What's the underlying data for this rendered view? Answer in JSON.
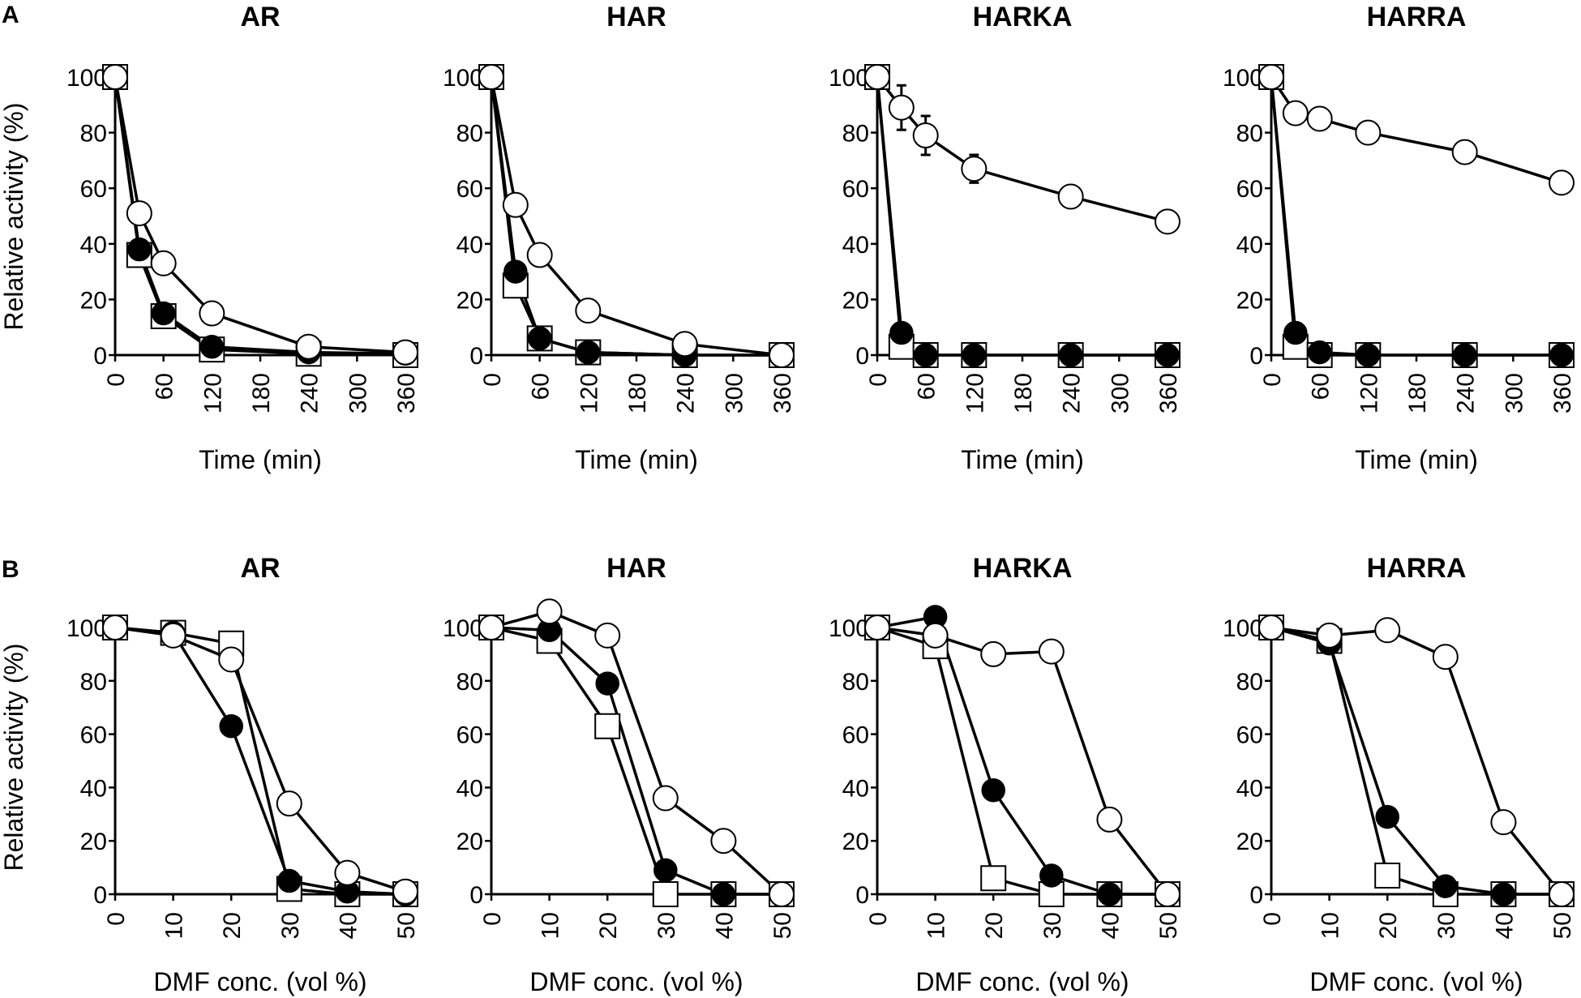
{
  "figure": {
    "row_labels": [
      "A",
      "B"
    ],
    "ylabel": "Relative activity (%)"
  },
  "chart_data": [
    {
      "type": "line",
      "row": "A",
      "title": "AR",
      "xlabel": "Time (min)",
      "ylabel": "Relative activity (%)",
      "xlim": [
        0,
        360
      ],
      "ylim": [
        0,
        100
      ],
      "xticks": [
        0,
        60,
        120,
        180,
        240,
        300,
        360
      ],
      "yticks": [
        0,
        20,
        40,
        60,
        80,
        100
      ],
      "series": [
        {
          "name": "open-circle",
          "marker": "circle-open",
          "x": [
            0,
            30,
            60,
            120,
            240,
            360
          ],
          "y": [
            100,
            51,
            33,
            15,
            3,
            1
          ]
        },
        {
          "name": "filled-circle",
          "marker": "circle-filled",
          "x": [
            0,
            30,
            60,
            120,
            240,
            360
          ],
          "y": [
            100,
            38,
            15,
            3,
            1,
            0.5
          ]
        },
        {
          "name": "open-square",
          "marker": "square-open",
          "x": [
            0,
            30,
            60,
            120,
            240,
            360
          ],
          "y": [
            100,
            36,
            14,
            2,
            0.5,
            0
          ]
        }
      ]
    },
    {
      "type": "line",
      "row": "A",
      "title": "HAR",
      "xlabel": "Time (min)",
      "ylabel": "",
      "xlim": [
        0,
        360
      ],
      "ylim": [
        0,
        100
      ],
      "xticks": [
        0,
        60,
        120,
        180,
        240,
        300,
        360
      ],
      "yticks": [
        0,
        20,
        40,
        60,
        80,
        100
      ],
      "series": [
        {
          "name": "open-circle",
          "marker": "circle-open",
          "x": [
            0,
            30,
            60,
            120,
            240,
            360
          ],
          "y": [
            100,
            54,
            36,
            16,
            4,
            0
          ]
        },
        {
          "name": "filled-circle",
          "marker": "circle-filled",
          "x": [
            0,
            30,
            60,
            120,
            240,
            360
          ],
          "y": [
            100,
            30,
            6,
            1,
            0,
            0
          ]
        },
        {
          "name": "open-square",
          "marker": "square-open",
          "x": [
            0,
            30,
            60,
            120,
            240,
            360
          ],
          "y": [
            100,
            25,
            6,
            1,
            0,
            0
          ]
        }
      ]
    },
    {
      "type": "line",
      "row": "A",
      "title": "HARKA",
      "xlabel": "Time (min)",
      "ylabel": "",
      "xlim": [
        0,
        360
      ],
      "ylim": [
        0,
        100
      ],
      "xticks": [
        0,
        60,
        120,
        180,
        240,
        300,
        360
      ],
      "yticks": [
        0,
        20,
        40,
        60,
        80,
        100
      ],
      "series": [
        {
          "name": "open-circle",
          "marker": "circle-open",
          "x": [
            0,
            30,
            60,
            120,
            240,
            360
          ],
          "y": [
            100,
            89,
            79,
            67,
            57,
            48
          ],
          "error": [
            0,
            8,
            7,
            5,
            0,
            0
          ]
        },
        {
          "name": "filled-circle",
          "marker": "circle-filled",
          "x": [
            0,
            30,
            60,
            120,
            240,
            360
          ],
          "y": [
            100,
            8,
            0,
            0,
            0,
            0
          ]
        },
        {
          "name": "open-square",
          "marker": "square-open",
          "x": [
            0,
            30,
            60,
            120,
            240,
            360
          ],
          "y": [
            100,
            3,
            0,
            0,
            0,
            0
          ]
        }
      ]
    },
    {
      "type": "line",
      "row": "A",
      "title": "HARRA",
      "xlabel": "Time (min)",
      "ylabel": "",
      "xlim": [
        0,
        360
      ],
      "ylim": [
        0,
        100
      ],
      "xticks": [
        0,
        60,
        120,
        180,
        240,
        300,
        360
      ],
      "yticks": [
        0,
        20,
        40,
        60,
        80,
        100
      ],
      "series": [
        {
          "name": "open-circle",
          "marker": "circle-open",
          "x": [
            0,
            30,
            60,
            120,
            240,
            360
          ],
          "y": [
            100,
            87,
            85,
            80,
            73,
            62
          ]
        },
        {
          "name": "filled-circle",
          "marker": "circle-filled",
          "x": [
            0,
            30,
            60,
            120,
            240,
            360
          ],
          "y": [
            100,
            8,
            1,
            0,
            0,
            0
          ]
        },
        {
          "name": "open-square",
          "marker": "square-open",
          "x": [
            0,
            30,
            60,
            120,
            240,
            360
          ],
          "y": [
            100,
            3,
            0,
            0,
            0,
            0
          ]
        }
      ]
    },
    {
      "type": "line",
      "row": "B",
      "title": "AR",
      "xlabel": "DMF conc. (vol %)",
      "ylabel": "Relative activity (%)",
      "xlim": [
        0,
        50
      ],
      "ylim": [
        0,
        100
      ],
      "xticks": [
        0,
        10,
        20,
        30,
        40,
        50
      ],
      "yticks": [
        0,
        20,
        40,
        60,
        80,
        100
      ],
      "series": [
        {
          "name": "open-circle",
          "marker": "circle-open",
          "x": [
            0,
            10,
            20,
            30,
            40,
            50
          ],
          "y": [
            100,
            97,
            88,
            34,
            8,
            1
          ]
        },
        {
          "name": "filled-circle",
          "marker": "circle-filled",
          "x": [
            0,
            10,
            20,
            30,
            40,
            50
          ],
          "y": [
            100,
            98,
            63,
            5,
            1,
            0
          ]
        },
        {
          "name": "open-square",
          "marker": "square-open",
          "x": [
            0,
            10,
            20,
            30,
            40,
            50
          ],
          "y": [
            100,
            98,
            94,
            2,
            0,
            0
          ]
        }
      ]
    },
    {
      "type": "line",
      "row": "B",
      "title": "HAR",
      "xlabel": "DMF conc. (vol %)",
      "ylabel": "",
      "xlim": [
        0,
        50
      ],
      "ylim": [
        0,
        100
      ],
      "xticks": [
        0,
        10,
        20,
        30,
        40,
        50
      ],
      "yticks": [
        0,
        20,
        40,
        60,
        80,
        100
      ],
      "series": [
        {
          "name": "open-circle",
          "marker": "circle-open",
          "x": [
            0,
            10,
            20,
            30,
            40,
            50
          ],
          "y": [
            100,
            106,
            97,
            36,
            20,
            0
          ]
        },
        {
          "name": "filled-circle",
          "marker": "circle-filled",
          "x": [
            0,
            10,
            20,
            30,
            40,
            50
          ],
          "y": [
            100,
            99,
            79,
            9,
            0,
            0
          ]
        },
        {
          "name": "open-square",
          "marker": "square-open",
          "x": [
            0,
            10,
            20,
            30,
            40,
            50
          ],
          "y": [
            100,
            95,
            63,
            0,
            0,
            0
          ]
        }
      ]
    },
    {
      "type": "line",
      "row": "B",
      "title": "HARKA",
      "xlabel": "DMF conc. (vol %)",
      "ylabel": "",
      "xlim": [
        0,
        50
      ],
      "ylim": [
        0,
        100
      ],
      "xticks": [
        0,
        10,
        20,
        30,
        40,
        50
      ],
      "yticks": [
        0,
        20,
        40,
        60,
        80,
        100
      ],
      "series": [
        {
          "name": "open-circle",
          "marker": "circle-open",
          "x": [
            0,
            10,
            20,
            30,
            40,
            50
          ],
          "y": [
            100,
            97,
            90,
            91,
            28,
            0
          ]
        },
        {
          "name": "filled-circle",
          "marker": "circle-filled",
          "x": [
            0,
            10,
            20,
            30,
            40,
            50
          ],
          "y": [
            100,
            104,
            39,
            7,
            0,
            0
          ]
        },
        {
          "name": "open-square",
          "marker": "square-open",
          "x": [
            0,
            10,
            20,
            30,
            40,
            50
          ],
          "y": [
            100,
            93,
            6,
            0,
            0,
            0
          ]
        }
      ]
    },
    {
      "type": "line",
      "row": "B",
      "title": "HARRA",
      "xlabel": "DMF conc. (vol %)",
      "ylabel": "",
      "xlim": [
        0,
        50
      ],
      "ylim": [
        0,
        100
      ],
      "xticks": [
        0,
        10,
        20,
        30,
        40,
        50
      ],
      "yticks": [
        0,
        20,
        40,
        60,
        80,
        100
      ],
      "series": [
        {
          "name": "open-circle",
          "marker": "circle-open",
          "x": [
            0,
            10,
            20,
            30,
            40,
            50
          ],
          "y": [
            100,
            97,
            99,
            89,
            27,
            0
          ]
        },
        {
          "name": "filled-circle",
          "marker": "circle-filled",
          "x": [
            0,
            10,
            20,
            30,
            40,
            50
          ],
          "y": [
            100,
            94,
            29,
            3,
            0,
            0
          ]
        },
        {
          "name": "open-square",
          "marker": "square-open",
          "x": [
            0,
            10,
            20,
            30,
            40,
            50
          ],
          "y": [
            100,
            95,
            7,
            0,
            0,
            0
          ]
        }
      ]
    }
  ]
}
